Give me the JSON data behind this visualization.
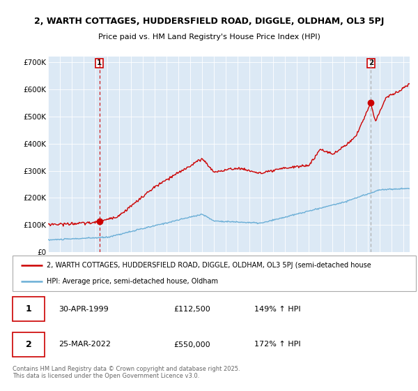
{
  "title1": "2, WARTH COTTAGES, HUDDERSFIELD ROAD, DIGGLE, OLDHAM, OL3 5PJ",
  "title2": "Price paid vs. HM Land Registry's House Price Index (HPI)",
  "bg_color": "#dce9f5",
  "hpi_color": "#6aaed6",
  "price_color": "#cc0000",
  "vline1_color": "#cc0000",
  "vline2_color": "#aaaaaa",
  "ylim": [
    0,
    720000
  ],
  "yticks": [
    0,
    100000,
    200000,
    300000,
    400000,
    500000,
    600000,
    700000
  ],
  "ytick_labels": [
    "£0",
    "£100K",
    "£200K",
    "£300K",
    "£400K",
    "£500K",
    "£600K",
    "£700K"
  ],
  "sale1_year": 1999.33,
  "sale1_price": 112500,
  "sale2_year": 2022.23,
  "sale2_price": 550000,
  "legend_line1": "2, WARTH COTTAGES, HUDDERSFIELD ROAD, DIGGLE, OLDHAM, OL3 5PJ (semi-detached house",
  "legend_line2": "HPI: Average price, semi-detached house, Oldham",
  "table_entries": [
    {
      "num": "1",
      "date": "30-APR-1999",
      "price": "£112,500",
      "hpi": "149% ↑ HPI"
    },
    {
      "num": "2",
      "date": "25-MAR-2022",
      "price": "£550,000",
      "hpi": "172% ↑ HPI"
    }
  ],
  "footnote": "Contains HM Land Registry data © Crown copyright and database right 2025.\nThis data is licensed under the Open Government Licence v3.0."
}
